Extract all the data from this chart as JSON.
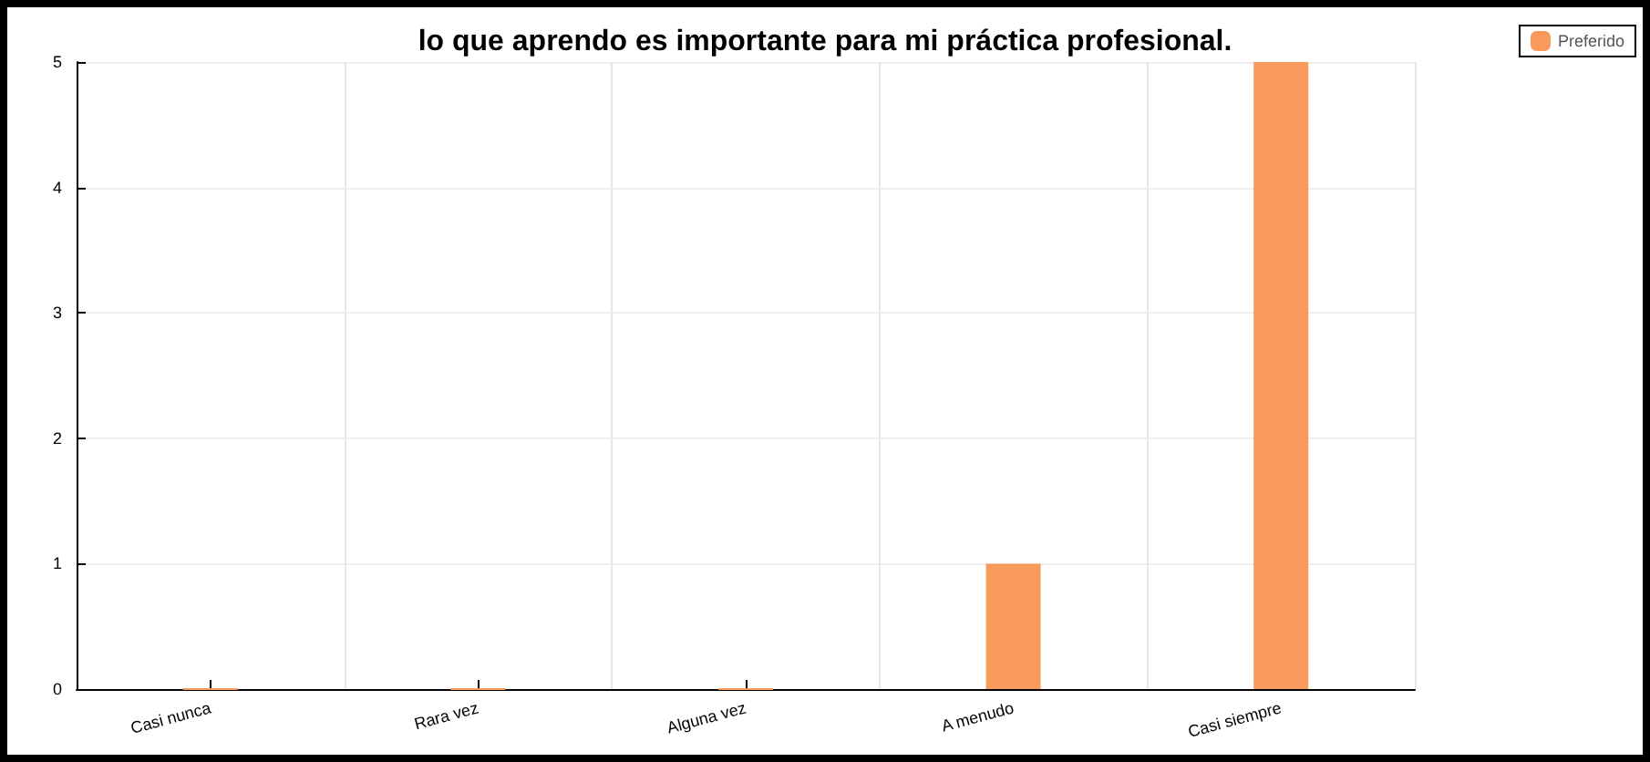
{
  "chart_data": {
    "type": "bar",
    "title": "lo que aprendo es importante para mi práctica profesional.",
    "categories": [
      "Casi nunca",
      "Rara vez",
      "Alguna vez",
      "A menudo",
      "Casi siempre"
    ],
    "series": [
      {
        "name": "Preferido",
        "color": "#f79a5c",
        "values": [
          0,
          0,
          0,
          1,
          5
        ]
      }
    ],
    "ylim": [
      0,
      5
    ],
    "yticks": [
      0,
      1,
      2,
      3,
      4,
      5
    ],
    "grid": true,
    "legend": "top right"
  }
}
